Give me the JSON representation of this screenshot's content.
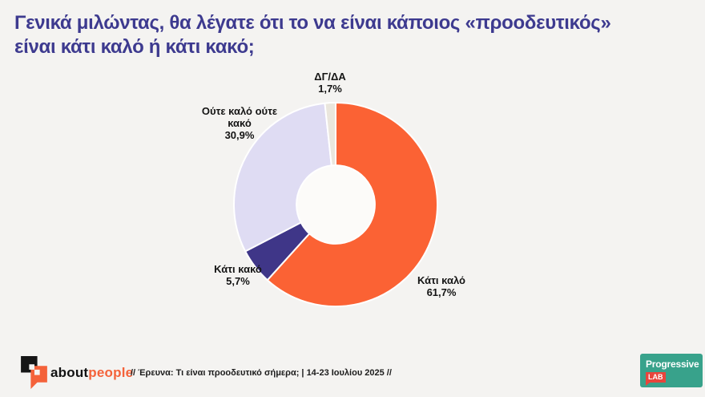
{
  "page": {
    "background": "#f4f3f1"
  },
  "title": {
    "line1": "Γενικά μιλώντας, θα λέγατε ότι το να είναι κάποιος «προοδευτικός»",
    "line2": "είναι κάτι καλό ή κάτι κακό;",
    "color": "#3d3a8f"
  },
  "chart_data": {
    "type": "pie",
    "subtype": "donut",
    "direction": "clockwise",
    "start_angle_deg": 0,
    "inner_radius_ratio": 0.385,
    "center_color": "#fcfbf9",
    "segment_stroke": "#ffffff",
    "segments": [
      {
        "label": "Κάτι καλό",
        "value": 61.7,
        "value_label": "61,7%",
        "color": "#fb6234"
      },
      {
        "label": "Κάτι κακό",
        "value": 5.7,
        "value_label": "5,7%",
        "color": "#3f3688"
      },
      {
        "label": "Ούτε καλό ούτε κακό",
        "value": 30.9,
        "value_label": "30,9%",
        "color": "#dfdcf3"
      },
      {
        "label": "ΔΓ/ΔΑ",
        "value": 1.7,
        "value_label": "1,7%",
        "color": "#eae6dd"
      }
    ]
  },
  "footer": {
    "brand_about": "about",
    "brand_people": "people",
    "brand_people_color": "#f4623a",
    "survey_note": "// Έρευνα: Τι είναι προοδευτικό σήμερα; | 14-23 Ιουλίου 2025 //"
  },
  "progressive_lab": {
    "name": "Progressive",
    "badge": "LAB",
    "bg_color": "#38a28b",
    "badge_color": "#e8453c"
  }
}
